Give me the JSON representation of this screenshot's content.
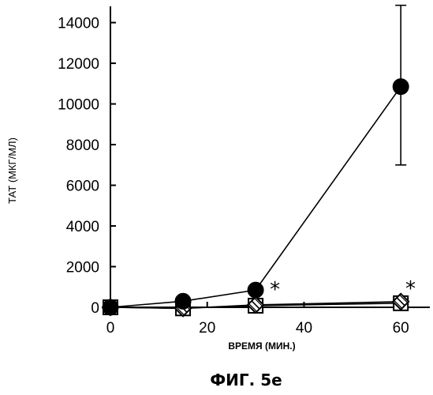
{
  "chart_data": {
    "type": "scatter",
    "xlabel": "ВРЕМЯ (МИН.)",
    "ylabel": "ТАТ (МКГ/МЛ)",
    "caption": "ФИГ. 5e",
    "xlim": [
      0,
      66
    ],
    "ylim": [
      0,
      14800
    ],
    "x_ticks": [
      0,
      20,
      40,
      60
    ],
    "y_ticks": [
      0,
      2000,
      4000,
      6000,
      8000,
      10000,
      12000,
      14000
    ],
    "x_tick_labels": [
      "0",
      "20",
      "40",
      "60"
    ],
    "y_tick_labels": [
      "0",
      "2000",
      "4000",
      "6000",
      "8000",
      "10000",
      "12000",
      "14000"
    ],
    "grid": false,
    "series": [
      {
        "marker": "filled-circle",
        "color": "#000000",
        "x": [
          0,
          15,
          30,
          60
        ],
        "y": [
          0,
          300,
          850,
          10850
        ],
        "error_bars": [
          null,
          null,
          null,
          {
            "low": 7000,
            "high": 14850
          }
        ]
      },
      {
        "marker": "open-square",
        "color": "#000000",
        "x": [
          0,
          15,
          30,
          60
        ],
        "y": [
          0,
          -50,
          80,
          200
        ]
      },
      {
        "marker": "crossed-diamond",
        "color": "#000000",
        "x": [
          0,
          15,
          30,
          60
        ],
        "y": [
          0,
          -50,
          120,
          280
        ]
      }
    ],
    "annotations": [
      {
        "text": "*",
        "x": 34,
        "y": 850
      },
      {
        "text": "*",
        "x": 62,
        "y": 900
      }
    ]
  }
}
